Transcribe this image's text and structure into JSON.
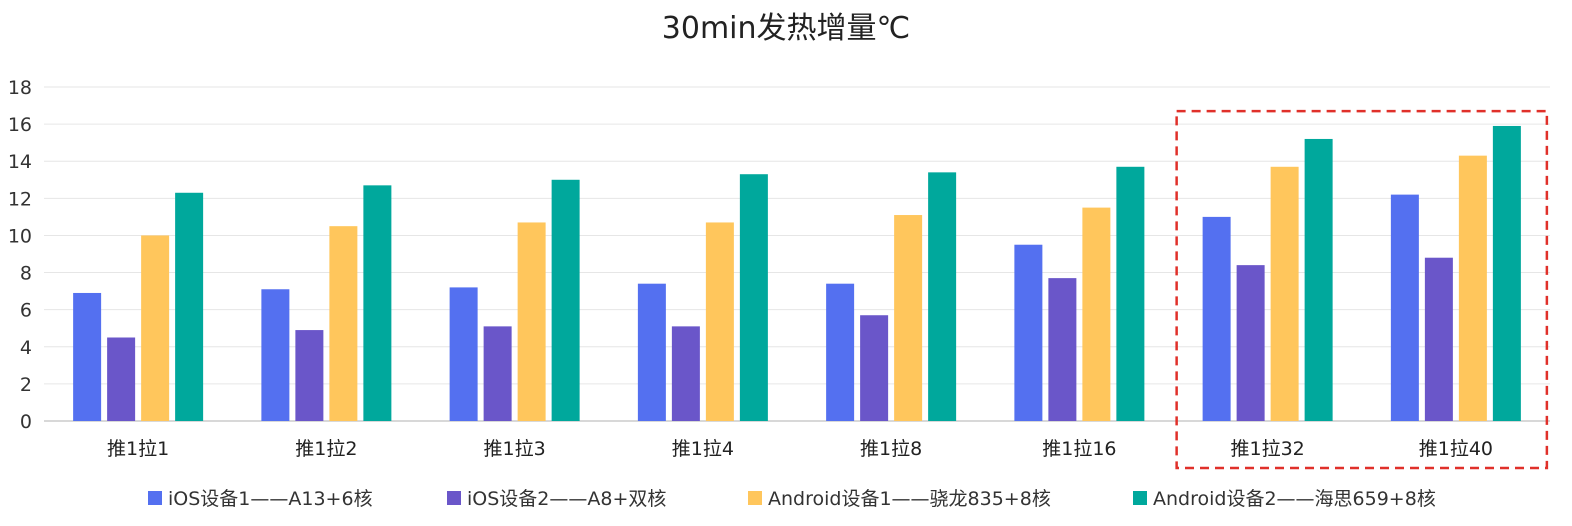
{
  "chart_data": {
    "type": "bar",
    "title": "30min发热增量℃",
    "xlabel": "",
    "ylabel": "",
    "ylim": [
      0,
      18
    ],
    "yticks": [
      0,
      2,
      4,
      6,
      8,
      10,
      12,
      14,
      16,
      18
    ],
    "grid": true,
    "legend_position": "bottom",
    "categories": [
      "推1拉1",
      "推1拉2",
      "推1拉3",
      "推1拉4",
      "推1拉8",
      "推1拉16",
      "推1拉32",
      "推1拉40"
    ],
    "series": [
      {
        "name": "iOS设备1——A13+6核",
        "color": "#5470f0",
        "values": [
          6.9,
          7.1,
          7.2,
          7.4,
          7.4,
          9.5,
          11.0,
          12.2
        ]
      },
      {
        "name": "iOS设备2——A8+双核",
        "color": "#6a56c9",
        "values": [
          4.5,
          4.9,
          5.1,
          5.1,
          5.7,
          7.7,
          8.4,
          8.8
        ]
      },
      {
        "name": "Android设备1——骁龙835+8核",
        "color": "#ffc65c",
        "values": [
          10.0,
          10.5,
          10.7,
          10.7,
          11.1,
          11.5,
          13.7,
          14.3
        ]
      },
      {
        "name": "Android设备2——海思659+8核",
        "color": "#00a89c",
        "values": [
          12.3,
          12.7,
          13.0,
          13.3,
          13.4,
          13.7,
          15.2,
          15.9
        ]
      }
    ],
    "highlight": {
      "categories": [
        "推1拉32",
        "推1拉40"
      ],
      "color": "#e0302a",
      "style": "dashed"
    }
  }
}
